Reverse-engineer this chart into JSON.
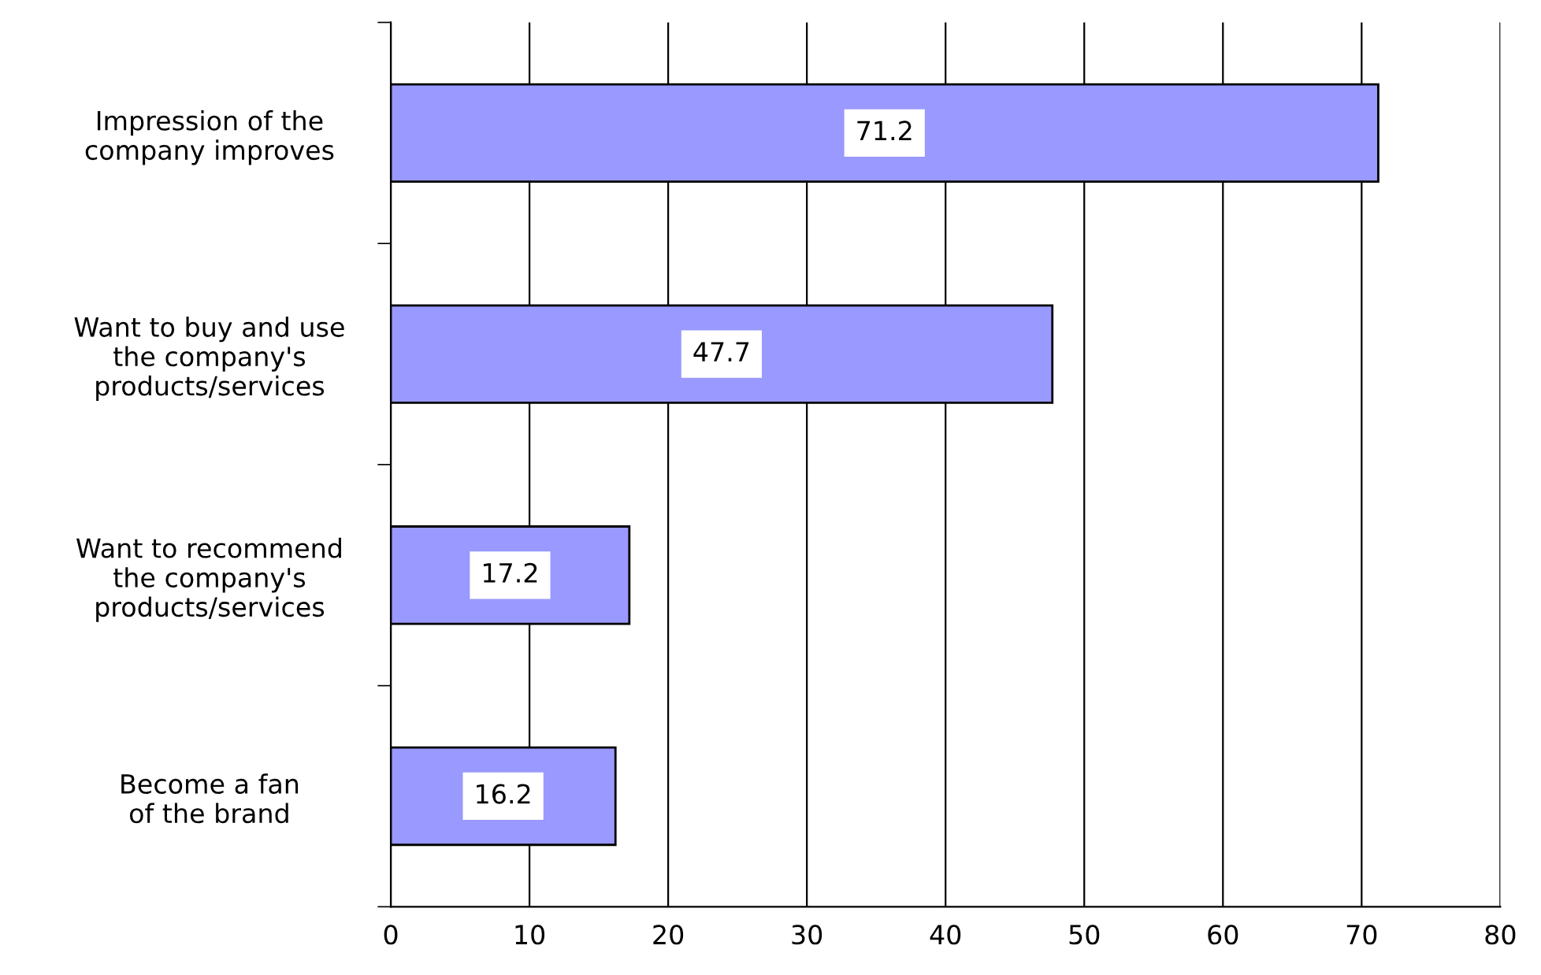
{
  "chart_data": {
    "type": "bar",
    "orientation": "horizontal",
    "categories": [
      "Impression of the\ncompany improves",
      "Want to buy and use\nthe company's\nproducts/services",
      "Want to recommend\nthe company's\nproducts/services",
      "Become a fan\nof the brand"
    ],
    "values": [
      71.2,
      47.7,
      17.2,
      16.2
    ],
    "color": "#9999ff",
    "xlim": [
      0,
      80
    ],
    "xticks": [
      0,
      10,
      20,
      30,
      40,
      50,
      60,
      70,
      80
    ],
    "grid": "x",
    "data_labels": true
  }
}
